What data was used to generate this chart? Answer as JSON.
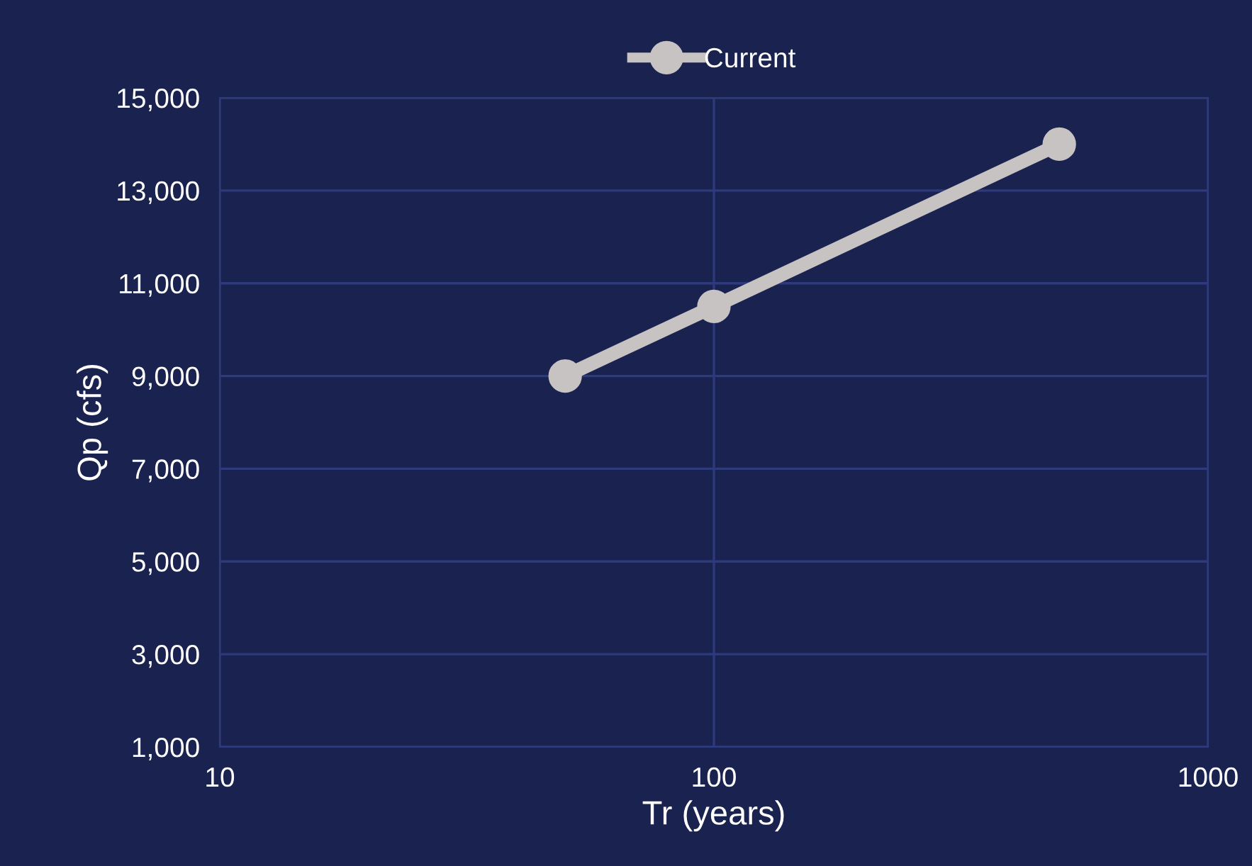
{
  "chart_data": {
    "type": "line",
    "xlabel": "Tr (years)",
    "ylabel": "Qp (cfs)",
    "x": [
      50,
      100,
      500
    ],
    "series": [
      {
        "name": "Current",
        "color": "#c8c3c3",
        "values": [
          9000,
          10500,
          14000
        ]
      }
    ],
    "log": "x",
    "xlim": [
      10,
      1000
    ],
    "xticks": [
      10,
      100,
      1000
    ],
    "ylim": [
      1000,
      15000
    ],
    "yticks": [
      {
        "value": 1000,
        "label": "1,000"
      },
      {
        "value": 3000,
        "label": "3,000"
      },
      {
        "value": 5000,
        "label": "5,000"
      },
      {
        "value": 7000,
        "label": "7,000"
      },
      {
        "value": 9000,
        "label": "9,000"
      },
      {
        "value": 11000,
        "label": "11,000"
      },
      {
        "value": 13000,
        "label": "13,000"
      },
      {
        "value": 15000,
        "label": "15,000"
      }
    ],
    "grid": true,
    "legend": "top",
    "marker": "circle",
    "line_style": "solid"
  }
}
